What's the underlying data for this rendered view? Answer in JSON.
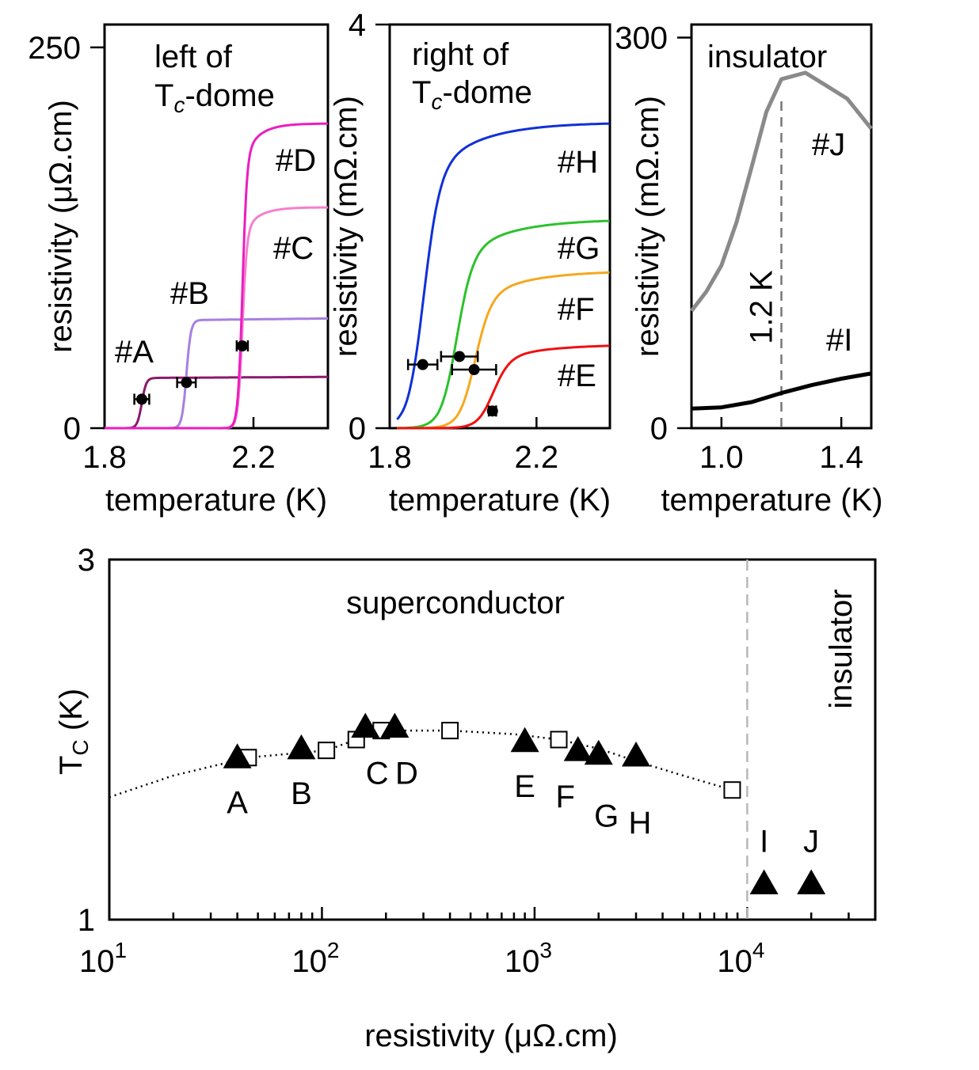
{
  "chart_data": [
    {
      "type": "line",
      "title": "left of T_c-dome",
      "title_lines": [
        "left of",
        "T",
        "c",
        "-dome"
      ],
      "xlabel": "temperature (K)",
      "ylabel": "resistivity (μΩ.cm)",
      "xlim": [
        1.8,
        2.4
      ],
      "ylim": [
        0,
        265
      ],
      "x_ticks": [
        1.8,
        2.2
      ],
      "x_tick_labels": [
        "1.8",
        "2.2"
      ],
      "y_ticks": [
        0,
        250
      ],
      "y_tick_labels": [
        "0",
        "250"
      ],
      "series": [
        {
          "name": "#A",
          "color": "#8b1a6b",
          "Tc": 1.9,
          "Tc_err": 0.02,
          "low": 0,
          "high": 33,
          "width": 0.006
        },
        {
          "name": "#B",
          "color": "#a77fe0",
          "Tc": 2.02,
          "Tc_err": 0.025,
          "low": 0,
          "high": 71,
          "width": 0.006
        },
        {
          "name": "#C",
          "color": "#f57fcf",
          "Tc": 2.17,
          "Tc_err": 0.015,
          "low": 0,
          "high": 145,
          "width": 0.006
        },
        {
          "name": "#D",
          "color": "#ea1ec0",
          "Tc": 2.17,
          "Tc_err": 0.015,
          "low": 0,
          "high": 200,
          "width": 0.006
        }
      ]
    },
    {
      "type": "line",
      "title": "right of T_c-dome",
      "title_lines": [
        "right of",
        "T",
        "c",
        "-dome"
      ],
      "xlabel": "temperature (K)",
      "ylabel": "resistivity (mΩ.cm)",
      "xlim": [
        1.8,
        2.4
      ],
      "ylim": [
        0,
        4
      ],
      "x_ticks": [
        1.8,
        2.2
      ],
      "x_tick_labels": [
        "1.8",
        "2.2"
      ],
      "y_ticks": [
        0,
        4
      ],
      "y_tick_labels": [
        "0",
        "4"
      ],
      "series": [
        {
          "name": "#H",
          "color": "#1030d8",
          "Tc": 1.89,
          "Tc_err": 0.04,
          "high": 3.03
        },
        {
          "name": "#G",
          "color": "#2cc22c",
          "Tc": 1.98,
          "Tc_err": 0.06,
          "high": 2.07
        },
        {
          "name": "#F",
          "color": "#f5a81e",
          "Tc": 2.03,
          "Tc_err": 0.06,
          "high": 1.56
        },
        {
          "name": "#E",
          "color": "#ee1111",
          "Tc": 2.08,
          "Tc_err": 0.01,
          "high": 0.83
        }
      ],
      "markers": [
        {
          "x": 1.89,
          "y": 0.63,
          "xerr": 0.04
        },
        {
          "x": 1.99,
          "y": 0.71,
          "xerr": 0.05
        },
        {
          "x": 2.03,
          "y": 0.58,
          "xerr": 0.06
        },
        {
          "x": 2.08,
          "y": 0.17,
          "xerr": 0.01
        }
      ]
    },
    {
      "type": "line",
      "title": "insulator",
      "xlabel": "temperature (K)",
      "ylabel": "resistivity (mΩ.cm)",
      "xlim": [
        0.9,
        1.5
      ],
      "ylim": [
        0,
        310
      ],
      "x_ticks": [
        1.0,
        1.4
      ],
      "x_tick_labels": [
        "1.0",
        "1.4"
      ],
      "y_ticks": [
        0,
        300
      ],
      "y_tick_labels": [
        "0",
        "300"
      ],
      "annotation": "1.2 K",
      "vline": 1.2,
      "series": [
        {
          "name": "#J",
          "color": "#8a8a8a",
          "x": [
            0.9,
            0.95,
            1.0,
            1.05,
            1.1,
            1.15,
            1.2,
            1.28,
            1.35,
            1.42,
            1.5
          ],
          "y": [
            90,
            105,
            125,
            158,
            200,
            243,
            268,
            273,
            263,
            253,
            230
          ]
        },
        {
          "name": "#I",
          "color": "#000000",
          "x": [
            0.9,
            1.0,
            1.1,
            1.2,
            1.3,
            1.4,
            1.5
          ],
          "y": [
            15,
            16,
            20,
            27,
            33,
            38,
            42
          ]
        }
      ]
    },
    {
      "type": "scatter",
      "xscale": "log",
      "xlabel": "resistivity (μΩ.cm)",
      "ylabel": "T_C (K)",
      "ylabel_parts": [
        "T",
        "C",
        " (K)"
      ],
      "xlim": [
        10,
        40000
      ],
      "ylim": [
        1,
        3
      ],
      "x_tick_labels": [
        {
          "base": "10",
          "exp": "1"
        },
        {
          "base": "10",
          "exp": "2"
        },
        {
          "base": "10",
          "exp": "3"
        },
        {
          "base": "10",
          "exp": "4"
        }
      ],
      "y_tick_labels": [
        "1",
        "3"
      ],
      "region_labels": [
        "superconductor",
        "insulator"
      ],
      "vline": 10000,
      "triangles": [
        {
          "label": "A",
          "x": 40,
          "y": 1.9
        },
        {
          "label": "B",
          "x": 80,
          "y": 1.95
        },
        {
          "label": "C",
          "x": 160,
          "y": 2.07
        },
        {
          "label": "D",
          "x": 220,
          "y": 2.07
        },
        {
          "label": "E",
          "x": 900,
          "y": 1.99
        },
        {
          "label": "F",
          "x": 1600,
          "y": 1.94,
          "err": 0.03
        },
        {
          "label": "G",
          "x": 2000,
          "y": 1.92,
          "err": 0.03
        },
        {
          "label": "H",
          "x": 3000,
          "y": 1.91
        },
        {
          "label": "I",
          "x": 12000,
          "y": 1.2
        },
        {
          "label": "J",
          "x": 20000,
          "y": 1.2
        }
      ],
      "squares": [
        {
          "x": 45,
          "y": 1.9
        },
        {
          "x": 105,
          "y": 1.94
        },
        {
          "x": 145,
          "y": 2.0
        },
        {
          "x": 190,
          "y": 2.05
        },
        {
          "x": 400,
          "y": 2.05
        },
        {
          "x": 1300,
          "y": 2.0
        },
        {
          "x": 8500,
          "y": 1.72
        }
      ],
      "fit_curve": {
        "x": [
          10,
          20,
          45,
          105,
          145,
          190,
          400,
          800,
          1300,
          2000,
          3000,
          5000,
          8500
        ],
        "y": [
          1.68,
          1.8,
          1.9,
          1.94,
          2.0,
          2.05,
          2.05,
          2.03,
          2.0,
          1.95,
          1.88,
          1.8,
          1.72
        ]
      }
    }
  ]
}
